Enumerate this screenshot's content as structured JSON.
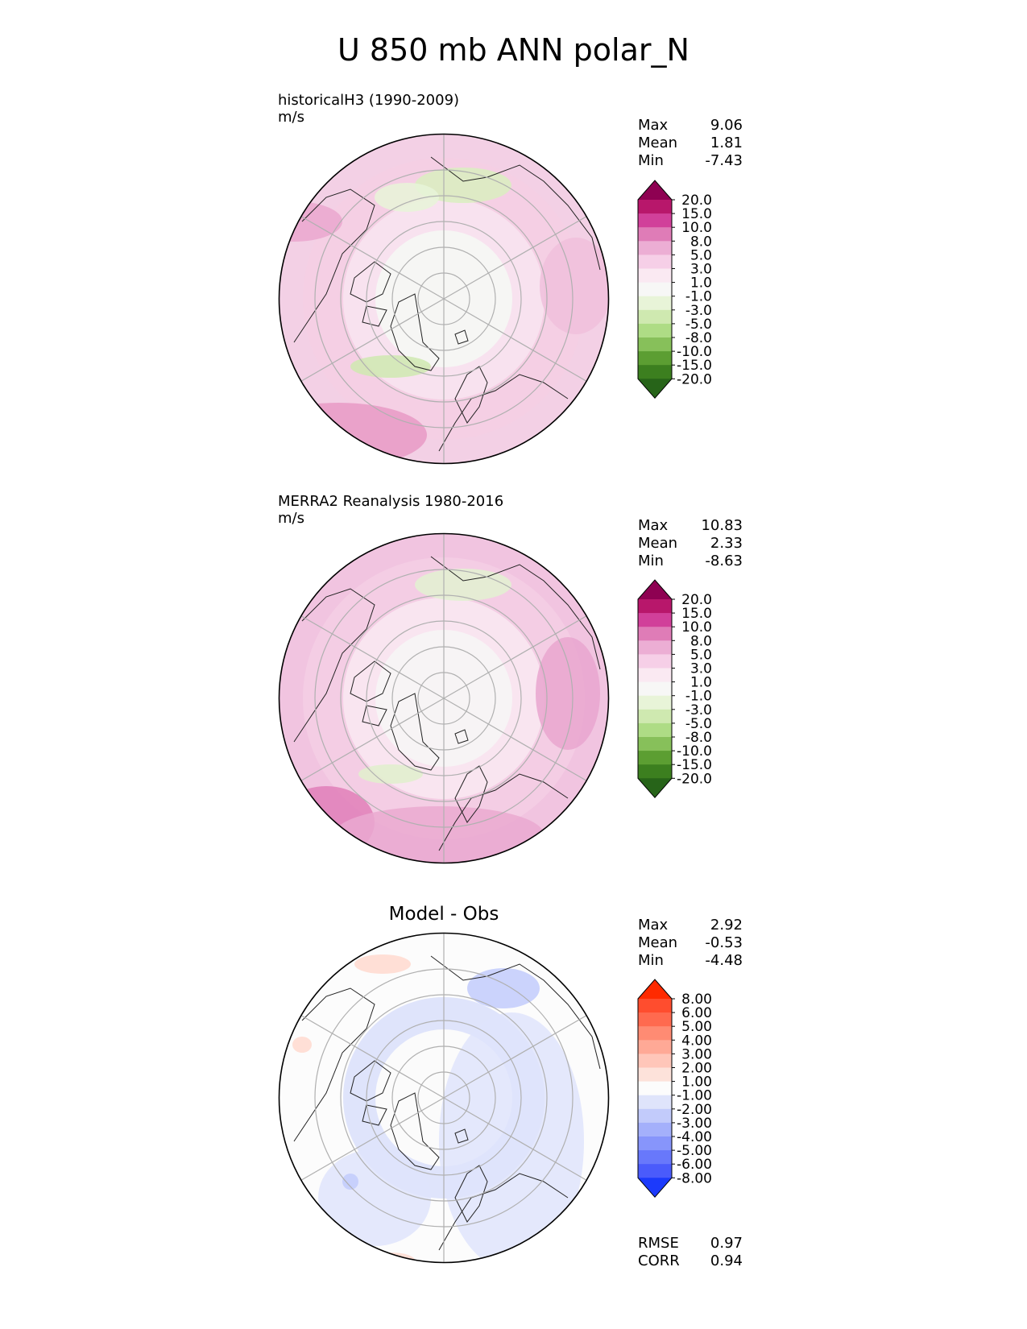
{
  "title": "U 850 mb ANN polar_N",
  "panels": [
    {
      "id": "test",
      "title": "historicalH3 (1990-2009)",
      "units": "m/s",
      "stats": [
        {
          "label": "Max",
          "value": "9.06"
        },
        {
          "label": "Mean",
          "value": "1.81"
        },
        {
          "label": "Min",
          "value": "-7.43"
        }
      ],
      "colormap": "PiYG",
      "levels": [
        "20.0",
        "15.0",
        "10.0",
        "8.0",
        "5.0",
        "3.0",
        "1.0",
        "-1.0",
        "-3.0",
        "-5.0",
        "-8.0",
        "-10.0",
        "-15.0",
        "-20.0"
      ],
      "colors": [
        "#8e0152",
        "#b8176b",
        "#d1409a",
        "#df7cb7",
        "#ecaed4",
        "#f6cfe7",
        "#fae9f2",
        "#f7f7f6",
        "#e8f4d8",
        "#cfe9b0",
        "#aedc85",
        "#87c05a",
        "#5c9e32",
        "#3c7f1f",
        "#276419"
      ]
    },
    {
      "id": "reference",
      "title": "MERRA2 Reanalysis 1980-2016",
      "units": "m/s",
      "stats": [
        {
          "label": "Max",
          "value": "10.83"
        },
        {
          "label": "Mean",
          "value": "2.33"
        },
        {
          "label": "Min",
          "value": "-8.63"
        }
      ],
      "colormap": "PiYG",
      "levels": [
        "20.0",
        "15.0",
        "10.0",
        "8.0",
        "5.0",
        "3.0",
        "1.0",
        "-1.0",
        "-3.0",
        "-5.0",
        "-8.0",
        "-10.0",
        "-15.0",
        "-20.0"
      ],
      "colors": [
        "#8e0152",
        "#b8176b",
        "#d1409a",
        "#df7cb7",
        "#ecaed4",
        "#f6cfe7",
        "#fae9f2",
        "#f7f7f6",
        "#e8f4d8",
        "#cfe9b0",
        "#aedc85",
        "#87c05a",
        "#5c9e32",
        "#3c7f1f",
        "#276419"
      ]
    },
    {
      "id": "diff",
      "title": "Model - Obs",
      "stats": [
        {
          "label": "Max",
          "value": "2.92"
        },
        {
          "label": "Mean",
          "value": "-0.53"
        },
        {
          "label": "Min",
          "value": "-4.48"
        }
      ],
      "metrics": [
        {
          "label": "RMSE",
          "value": "0.97"
        },
        {
          "label": "CORR",
          "value": "0.94"
        }
      ],
      "colormap": "bwr",
      "levels": [
        "8.00",
        "6.00",
        "5.00",
        "4.00",
        "3.00",
        "2.00",
        "1.00",
        "-1.00",
        "-2.00",
        "-3.00",
        "-4.00",
        "-5.00",
        "-6.00",
        "-8.00"
      ],
      "colors": [
        "#ff2a00",
        "#ff4d2e",
        "#ff6a4f",
        "#ff8b73",
        "#ffa996",
        "#ffc6b9",
        "#fde2da",
        "#fcfcfc",
        "#dfe4fb",
        "#c2cbfb",
        "#a4b0fb",
        "#8795fb",
        "#6878fb",
        "#4a5bfb",
        "#1c3afb"
      ]
    }
  ],
  "chart_data": [
    {
      "type": "heatmap",
      "title": "historicalH3 (1990-2009)",
      "units": "m/s",
      "projection": "north polar stereographic",
      "stats": {
        "max": 9.06,
        "mean": 1.81,
        "min": -7.43
      },
      "colorbar_levels": [
        -20.0,
        -15.0,
        -10.0,
        -8.0,
        -5.0,
        -3.0,
        -1.0,
        1.0,
        3.0,
        5.0,
        8.0,
        10.0,
        15.0,
        20.0
      ]
    },
    {
      "type": "heatmap",
      "title": "MERRA2 Reanalysis 1980-2016",
      "units": "m/s",
      "projection": "north polar stereographic",
      "stats": {
        "max": 10.83,
        "mean": 2.33,
        "min": -8.63
      },
      "colorbar_levels": [
        -20.0,
        -15.0,
        -10.0,
        -8.0,
        -5.0,
        -3.0,
        -1.0,
        1.0,
        3.0,
        5.0,
        8.0,
        10.0,
        15.0,
        20.0
      ]
    },
    {
      "type": "heatmap",
      "title": "Model - Obs",
      "projection": "north polar stereographic",
      "stats": {
        "max": 2.92,
        "mean": -0.53,
        "min": -4.48,
        "rmse": 0.97,
        "corr": 0.94
      },
      "colorbar_levels": [
        -8.0,
        -6.0,
        -5.0,
        -4.0,
        -3.0,
        -2.0,
        -1.0,
        1.0,
        2.0,
        3.0,
        4.0,
        5.0,
        6.0,
        8.0
      ]
    }
  ]
}
